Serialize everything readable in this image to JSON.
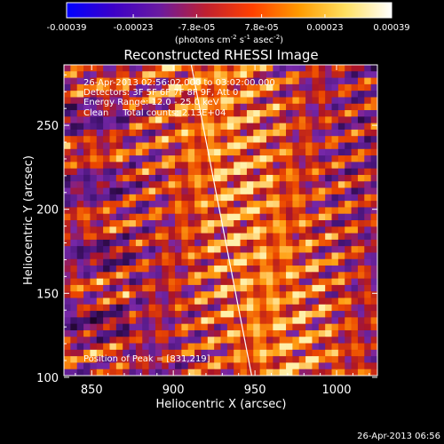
{
  "chart_data": {
    "type": "heatmap",
    "title": "Reconstructed RHESSI Image",
    "xlabel": "Heliocentric X (arcsec)",
    "ylabel": "Heliocentric Y (arcsec)",
    "xlim": [
      833,
      1025
    ],
    "ylim": [
      101,
      286
    ],
    "x_ticks": [
      850,
      900,
      950,
      1000
    ],
    "y_ticks": [
      100,
      150,
      200,
      250
    ],
    "colorbar": {
      "min": -0.00039,
      "max": 0.00039,
      "tick_values": [
        -0.00039,
        -0.00023,
        -7.8e-05,
        7.8e-05,
        0.00023,
        0.00039
      ],
      "tick_labels": [
        "-0.00039",
        "-0.00023",
        "-7.8e-05",
        "7.8e-05",
        "0.00023",
        "0.00039"
      ],
      "units_parts": [
        "(photons cm",
        "-2",
        " s",
        "-1",
        " asec",
        "-2",
        ")"
      ],
      "colors": [
        "#0000ff",
        "#3c00c8",
        "#6a1aa0",
        "#c02030",
        "#ff4000",
        "#ff9a00",
        "#ffe060",
        "#ffffff"
      ]
    },
    "annotations": [
      "26-Apr-2013 02:56:02.000 to 03:02:00.000",
      "Detectors: 3F 5F 6F 7F 8F 9F, Att 0",
      "Energy Range: 12.0 - 25.0 keV",
      "Clean     Total counts: 2.13E+04"
    ],
    "peak_label": "Position of Peak = [831,219]",
    "limb_curve": {
      "x": [
        911,
        948
      ],
      "y": [
        286,
        101
      ]
    },
    "grid": false
  },
  "footer": {
    "timestamp": "26-Apr-2013 06:56"
  }
}
